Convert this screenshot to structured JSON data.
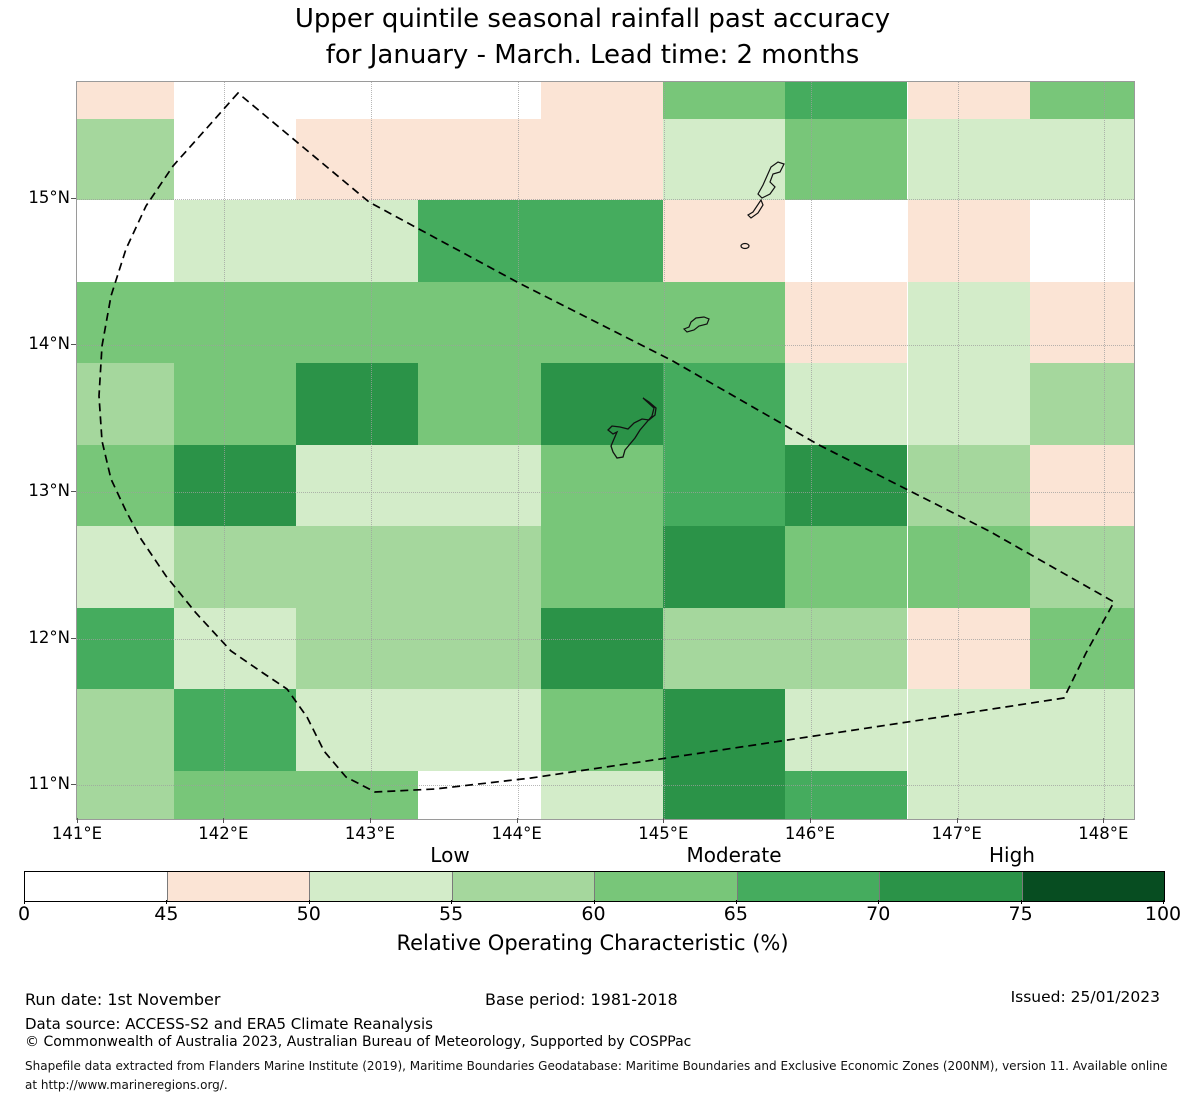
{
  "title": {
    "line1": "Upper quintile seasonal rainfall past accuracy",
    "line2": "for January - March. Lead time: 2 months"
  },
  "legend": {
    "low": "Low",
    "moderate": "Moderate",
    "high": "High"
  },
  "colorbar": {
    "label": "Relative Operating Characteristic (%)",
    "tick_labels": [
      "0",
      "45",
      "50",
      "55",
      "60",
      "65",
      "70",
      "75",
      "100"
    ],
    "segment_colors": [
      "#ffffff",
      "#fbe4d5",
      "#d3ecc9",
      "#a5d79d",
      "#78c679",
      "#45ac5e",
      "#2b9348",
      "#074d21"
    ],
    "segment_ranges": [
      "0-45",
      "45-50",
      "50-55",
      "55-60",
      "60-65",
      "65-70",
      "70-75",
      "75-100"
    ]
  },
  "footer": {
    "run_date": "Run date: 1st November",
    "base_period": "Base period: 1981-2018",
    "issued": "Issued: 25/01/2023",
    "data_source": "Data source: ACCESS-S2 and ERA5 Climate Reanalysis",
    "copyright": "© Commonwealth of Australia 2023, Australian Bureau of Meteorology, Supported by COSPPac",
    "smallprint_line1": "Shapefile data extracted from Flanders Marine Institute (2019), Maritime Boundaries Geodatabase: Maritime Boundaries and Exclusive Economic Zones (200NM), version 11. Available online",
    "smallprint_line2": "at http://www.marineregions.org/."
  },
  "chart_data": {
    "type": "heatmap",
    "title": "Upper quintile seasonal rainfall past accuracy for January - March. Lead time: 2 months",
    "variable": "Relative Operating Characteristic (%)",
    "x_axis": {
      "tick_labels": [
        "141°E",
        "142°E",
        "143°E",
        "144°E",
        "145°E",
        "146°E",
        "147°E",
        "148°E"
      ],
      "range_deg": [
        141,
        148.2
      ]
    },
    "y_axis": {
      "tick_labels": [
        "15°N",
        "14°N",
        "13°N",
        "12°N",
        "11°N"
      ],
      "range_deg": [
        10.75,
        15.79
      ]
    },
    "skill_categories": {
      "low": "Low",
      "moderate": "Moderate",
      "high": "High"
    },
    "palette": {
      "w": {
        "hex": "#ffffff",
        "roc_range": "0-45"
      },
      "p": {
        "hex": "#fbe4d5",
        "roc_range": "45-50"
      },
      "g1": {
        "hex": "#d3ecc9",
        "roc_range": "50-55"
      },
      "g2": {
        "hex": "#a5d79d",
        "roc_range": "55-60"
      },
      "g3": {
        "hex": "#78c679",
        "roc_range": "60-65"
      },
      "g4": {
        "hex": "#45ac5e",
        "roc_range": "65-70"
      },
      "g5": {
        "hex": "#2b9348",
        "roc_range": "70-75"
      },
      "g6": {
        "hex": "#074d21",
        "roc_range": "75-100"
      }
    },
    "grid_note": "10 rows (north to south, ~0.56 deg each, top/bottom rows clipped) x 9 columns (west to east, ~0.84 deg each, edge columns clipped)",
    "grid": [
      {
        "lat_band": "15.79-15.54N",
        "cells": [
          "p",
          "w",
          "w",
          "w",
          "p",
          "g3",
          "g4",
          "p",
          "g3"
        ]
      },
      {
        "lat_band": "15.54-14.99N",
        "cells": [
          "g2",
          "w",
          "p",
          "p",
          "p",
          "g1",
          "g3",
          "g1",
          "g1"
        ]
      },
      {
        "lat_band": "14.99-14.43N",
        "cells": [
          "w",
          "g1",
          "g1",
          "g4",
          "g4",
          "p",
          "w",
          "p",
          "w"
        ]
      },
      {
        "lat_band": "14.43-13.88N",
        "cells": [
          "g3",
          "g3",
          "g3",
          "g3",
          "g3",
          "g3",
          "p",
          "g1",
          "p"
        ]
      },
      {
        "lat_band": "13.88-13.32N",
        "cells": [
          "g2",
          "g3",
          "g5",
          "g3",
          "g5",
          "g4",
          "g1",
          "g1",
          "g2"
        ]
      },
      {
        "lat_band": "13.32-12.77N",
        "cells": [
          "g3",
          "g5",
          "g1",
          "g1",
          "g3",
          "g4",
          "g5",
          "g2",
          "p"
        ]
      },
      {
        "lat_band": "12.77-12.21N",
        "cells": [
          "g1",
          "g2",
          "g2",
          "g2",
          "g3",
          "g5",
          "g3",
          "g3",
          "g2"
        ]
      },
      {
        "lat_band": "12.21-11.66N",
        "cells": [
          "g4",
          "g1",
          "g2",
          "g2",
          "g5",
          "g2",
          "g2",
          "p",
          "g3"
        ]
      },
      {
        "lat_band": "11.66-11.10N",
        "cells": [
          "g2",
          "g4",
          "g1",
          "g1",
          "g3",
          "g5",
          "g1",
          "g1",
          "g1"
        ]
      },
      {
        "lat_band": "11.10-10.75N",
        "cells": [
          "g2",
          "g3",
          "g3",
          "w",
          "g1",
          "g5",
          "g4",
          "g1",
          "g1"
        ]
      }
    ],
    "map_annotations": [
      "EEZ boundary (dashed)",
      "Saipan",
      "Tinian",
      "Aguijan",
      "Rota",
      "Guam"
    ]
  }
}
